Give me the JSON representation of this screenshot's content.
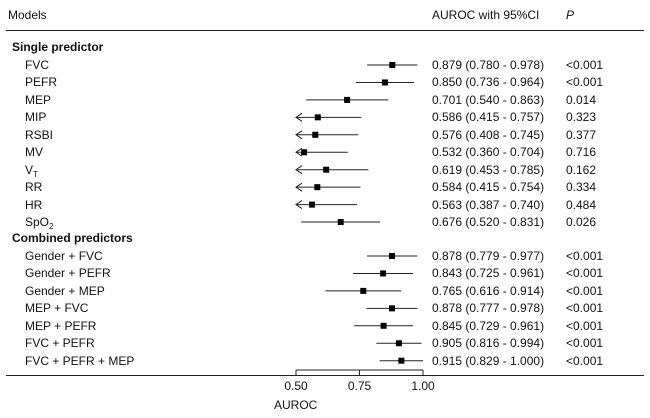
{
  "header": {
    "models": "Models",
    "auroc_ci": "AUROC with 95%CI",
    "p": "P"
  },
  "sections": [
    {
      "title": "Single predictor",
      "rows": [
        {
          "label": "FVC",
          "text": "0.879 (0.780 - 0.978)",
          "p": "<0.001"
        },
        {
          "label": "PEFR",
          "text": "0.850 (0.736 - 0.964)",
          "p": "<0.001"
        },
        {
          "label": "MEP",
          "text": "0.701 (0.540 - 0.863)",
          "p": "0.014"
        },
        {
          "label": "MIP",
          "text": "0.586 (0.415 - 0.757)",
          "p": "0.323"
        },
        {
          "label": "RSBI",
          "text": "0.576 (0.408 - 0.745)",
          "p": "0.377"
        },
        {
          "label": "MV",
          "text": "0.532 (0.360 - 0.704)",
          "p": "0.716"
        },
        {
          "label": "V",
          "sub": "T",
          "text": "0.619 (0.453 - 0.785)",
          "p": "0.162"
        },
        {
          "label": "RR",
          "text": "0.584 (0.415 - 0.754)",
          "p": "0.334"
        },
        {
          "label": "HR",
          "text": "0.563 (0.387 - 0.740)",
          "p": "0.484"
        },
        {
          "label": "SpO",
          "sub": "2",
          "text": "0.676 (0.520 - 0.831)",
          "p": "0.026"
        }
      ]
    },
    {
      "title": "Combined predictors",
      "rows": [
        {
          "label": "Gender + FVC",
          "text": "0.878 (0.779 - 0.977)",
          "p": "<0.001"
        },
        {
          "label": "Gender + PEFR",
          "text": "0.843 (0.725 - 0.961)",
          "p": "<0.001"
        },
        {
          "label": "Gender + MEP",
          "text": "0.765 (0.616 - 0.914)",
          "p": "<0.001"
        },
        {
          "label": "MEP + FVC",
          "text": "0.878 (0.777 - 0.978)",
          "p": "<0.001"
        },
        {
          "label": "MEP + PEFR",
          "text": "0.845 (0.729 - 0.961)",
          "p": "<0.001"
        },
        {
          "label": "FVC + PEFR",
          "text": "0.905 (0.816 - 0.994)",
          "p": "<0.001"
        },
        {
          "label": "FVC + PEFR + MEP",
          "text": "0.915 (0.829 - 1.000)",
          "p": "<0.001"
        }
      ]
    }
  ],
  "chart_data": {
    "type": "forest",
    "xlabel": "AUROC",
    "xticks": [
      0.5,
      0.75,
      1.0
    ],
    "xtick_labels": [
      "0.50",
      "0.75",
      "1.00"
    ],
    "xlim": [
      0.5,
      1.0
    ],
    "arrow_below_axis_min": true,
    "series": [
      {
        "label": "FVC",
        "auroc": 0.879,
        "lower": 0.78,
        "upper": 0.978
      },
      {
        "label": "PEFR",
        "auroc": 0.85,
        "lower": 0.736,
        "upper": 0.964
      },
      {
        "label": "MEP",
        "auroc": 0.701,
        "lower": 0.54,
        "upper": 0.863
      },
      {
        "label": "MIP",
        "auroc": 0.586,
        "lower": 0.415,
        "upper": 0.757
      },
      {
        "label": "RSBI",
        "auroc": 0.576,
        "lower": 0.408,
        "upper": 0.745
      },
      {
        "label": "MV",
        "auroc": 0.532,
        "lower": 0.36,
        "upper": 0.704
      },
      {
        "label": "VT",
        "auroc": 0.619,
        "lower": 0.453,
        "upper": 0.785
      },
      {
        "label": "RR",
        "auroc": 0.584,
        "lower": 0.415,
        "upper": 0.754
      },
      {
        "label": "HR",
        "auroc": 0.563,
        "lower": 0.387,
        "upper": 0.74
      },
      {
        "label": "SpO2",
        "auroc": 0.676,
        "lower": 0.52,
        "upper": 0.831
      },
      {
        "label": "Gender + FVC",
        "auroc": 0.878,
        "lower": 0.779,
        "upper": 0.977
      },
      {
        "label": "Gender + PEFR",
        "auroc": 0.843,
        "lower": 0.725,
        "upper": 0.961
      },
      {
        "label": "Gender + MEP",
        "auroc": 0.765,
        "lower": 0.616,
        "upper": 0.914
      },
      {
        "label": "MEP + FVC",
        "auroc": 0.878,
        "lower": 0.777,
        "upper": 0.978
      },
      {
        "label": "MEP + PEFR",
        "auroc": 0.845,
        "lower": 0.729,
        "upper": 0.961
      },
      {
        "label": "FVC + PEFR",
        "auroc": 0.905,
        "lower": 0.816,
        "upper": 0.994
      },
      {
        "label": "FVC + PEFR + MEP",
        "auroc": 0.915,
        "lower": 0.829,
        "upper": 1.0
      }
    ]
  }
}
